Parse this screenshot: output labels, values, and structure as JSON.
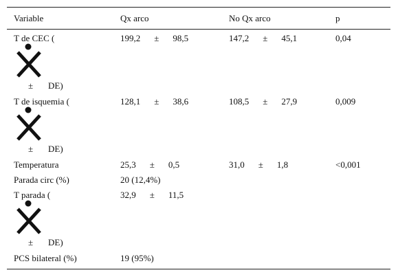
{
  "table": {
    "header": [
      "Variable",
      "Qx arco",
      "No Qx arco",
      "p"
    ],
    "rows": [
      {
        "variable": "T de CEC (",
        "variable_suffix": [
          "±",
          "DE)"
        ],
        "qx": [
          "199,2",
          "±",
          "98,5"
        ],
        "no_qx": [
          "147,2",
          "±",
          "45,1"
        ],
        "p": "0,04"
      },
      {
        "variable": "T de isquemia (",
        "variable_suffix": [
          "±",
          "DE)"
        ],
        "qx": [
          "128,1",
          "±",
          "38,6"
        ],
        "no_qx": [
          "108,5",
          "±",
          "27,9"
        ],
        "p": "0,009"
      },
      {
        "variable": "Temperatura",
        "qx": [
          "25,3",
          "±",
          "0,5"
        ],
        "no_qx": [
          "31,0",
          "±",
          "1,8"
        ],
        "p": "<0,001"
      },
      {
        "variable": "Parada circ (%)",
        "qx": [
          "20 (12,4%)"
        ]
      },
      {
        "variable": "T parada (",
        "variable_suffix": [
          "±",
          "DE)"
        ],
        "qx": [
          "32,9",
          "±",
          "11,5"
        ]
      },
      {
        "variable": "PCS bilateral (%)",
        "qx": [
          "19 (95%)"
        ]
      }
    ]
  }
}
